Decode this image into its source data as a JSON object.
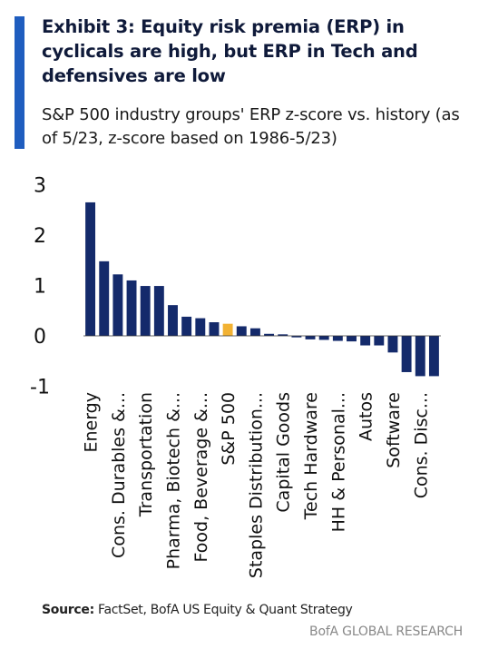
{
  "header": {
    "title": "Exhibit 3: Equity risk premia (ERP) in cyclicals are high, but ERP in Tech and defensives are low",
    "subtitle": "S&P 500 industry groups' ERP z-score vs. history (as of 5/23, z-score based on 1986-5/23)"
  },
  "footer": {
    "source_label": "Source:",
    "source_text": " FactSet, BofA US Equity & Quant Strategy",
    "brand": "BofA GLOBAL RESEARCH"
  },
  "colors": {
    "bar": "#142a6b",
    "highlight": "#f2b233",
    "accent": "#1f5dbf"
  },
  "chart_data": {
    "type": "bar",
    "categories": [
      "Energy",
      "",
      "Cons. Durables &...",
      "",
      "Transportation",
      "",
      "Pharma, Biotech &...",
      "",
      "Food, Beverage &...",
      "",
      "S&P 500",
      "",
      "Staples Distribution...",
      "",
      "Capital Goods",
      "",
      "Tech Hardware",
      "",
      "HH & Personal...",
      "",
      "Autos",
      "",
      "Software",
      "",
      "Cons. Disc...",
      ""
    ],
    "values": [
      2.65,
      1.48,
      1.22,
      1.1,
      0.99,
      0.99,
      0.61,
      0.38,
      0.35,
      0.27,
      0.24,
      0.19,
      0.15,
      0.04,
      0.03,
      -0.03,
      -0.07,
      -0.08,
      -0.1,
      -0.11,
      -0.19,
      -0.19,
      -0.33,
      -0.72,
      -0.8,
      -0.8
    ],
    "highlight_index": 10,
    "ylim": [
      -1,
      3
    ],
    "yticks": [
      "3",
      "2",
      "1",
      "0",
      "-1"
    ],
    "ytick_values": [
      3,
      2,
      1,
      0,
      -1
    ],
    "title": "",
    "xlabel": "",
    "ylabel": ""
  }
}
